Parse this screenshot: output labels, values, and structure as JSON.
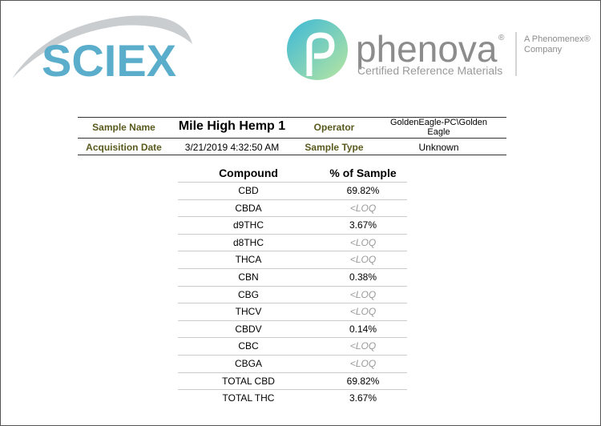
{
  "header": {
    "left_logo": "SCIEX",
    "right_logo": {
      "name": "phenova",
      "registered": "®",
      "tagline": "Certified Reference Materials",
      "parent": "A Phenomenex®",
      "parent_line2": "Company"
    }
  },
  "sample_info": {
    "sample_name_label": "Sample Name",
    "sample_name": "Mile High Hemp 1",
    "operator_label": "Operator",
    "operator": "GoldenEagle-PC\\Golden Eagle",
    "acquisition_date_label": "Acquisition Date",
    "acquisition_date": "3/21/2019 4:32:50 AM",
    "sample_type_label": "Sample Type",
    "sample_type": "Unknown"
  },
  "table": {
    "columns": [
      "Compound",
      "% of Sample"
    ],
    "rows": [
      [
        "CBD",
        "69.82%"
      ],
      [
        "CBDA",
        "<LOQ"
      ],
      [
        "d9THC",
        "3.67%"
      ],
      [
        "d8THC",
        "<LOQ"
      ],
      [
        "THCA",
        "<LOQ"
      ],
      [
        "CBN",
        "0.38%"
      ],
      [
        "CBG",
        "<LOQ"
      ],
      [
        "THCV",
        "<LOQ"
      ],
      [
        "CBDV",
        "0.14%"
      ],
      [
        "CBC",
        "<LOQ"
      ],
      [
        "CBGA",
        "<LOQ"
      ],
      [
        "TOTAL CBD",
        "69.82%"
      ],
      [
        "TOTAL THC",
        "3.67%"
      ]
    ]
  }
}
